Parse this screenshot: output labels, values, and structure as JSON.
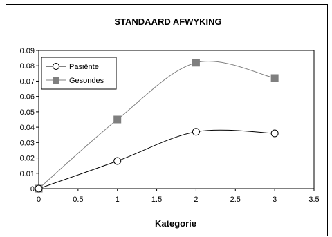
{
  "chart_data": {
    "type": "line",
    "title": "STANDAARD AFWYKING",
    "xlabel": "Kategorie",
    "ylabel": "",
    "x": [
      0,
      1,
      2,
      3
    ],
    "xlim": [
      0,
      3.5
    ],
    "ylim": [
      0,
      0.09
    ],
    "x_ticks": [
      "0",
      "0.5",
      "1",
      "1.5",
      "2",
      "2.5",
      "3",
      "3.5"
    ],
    "y_ticks": [
      "0",
      "0.01",
      "0.02",
      "0.03",
      "0.04",
      "0.05",
      "0.06",
      "0.07",
      "0.08",
      "0.09"
    ],
    "grid": false,
    "legend_placement": "top-left",
    "series": [
      {
        "name": "Pasiënte",
        "values": [
          0,
          0.018,
          0.037,
          0.036
        ],
        "marker": "circle-open",
        "color": "#000000"
      },
      {
        "name": "Gesondes",
        "values": [
          0,
          0.045,
          0.082,
          0.072
        ],
        "marker": "square-filled",
        "color": "#808080"
      }
    ]
  }
}
